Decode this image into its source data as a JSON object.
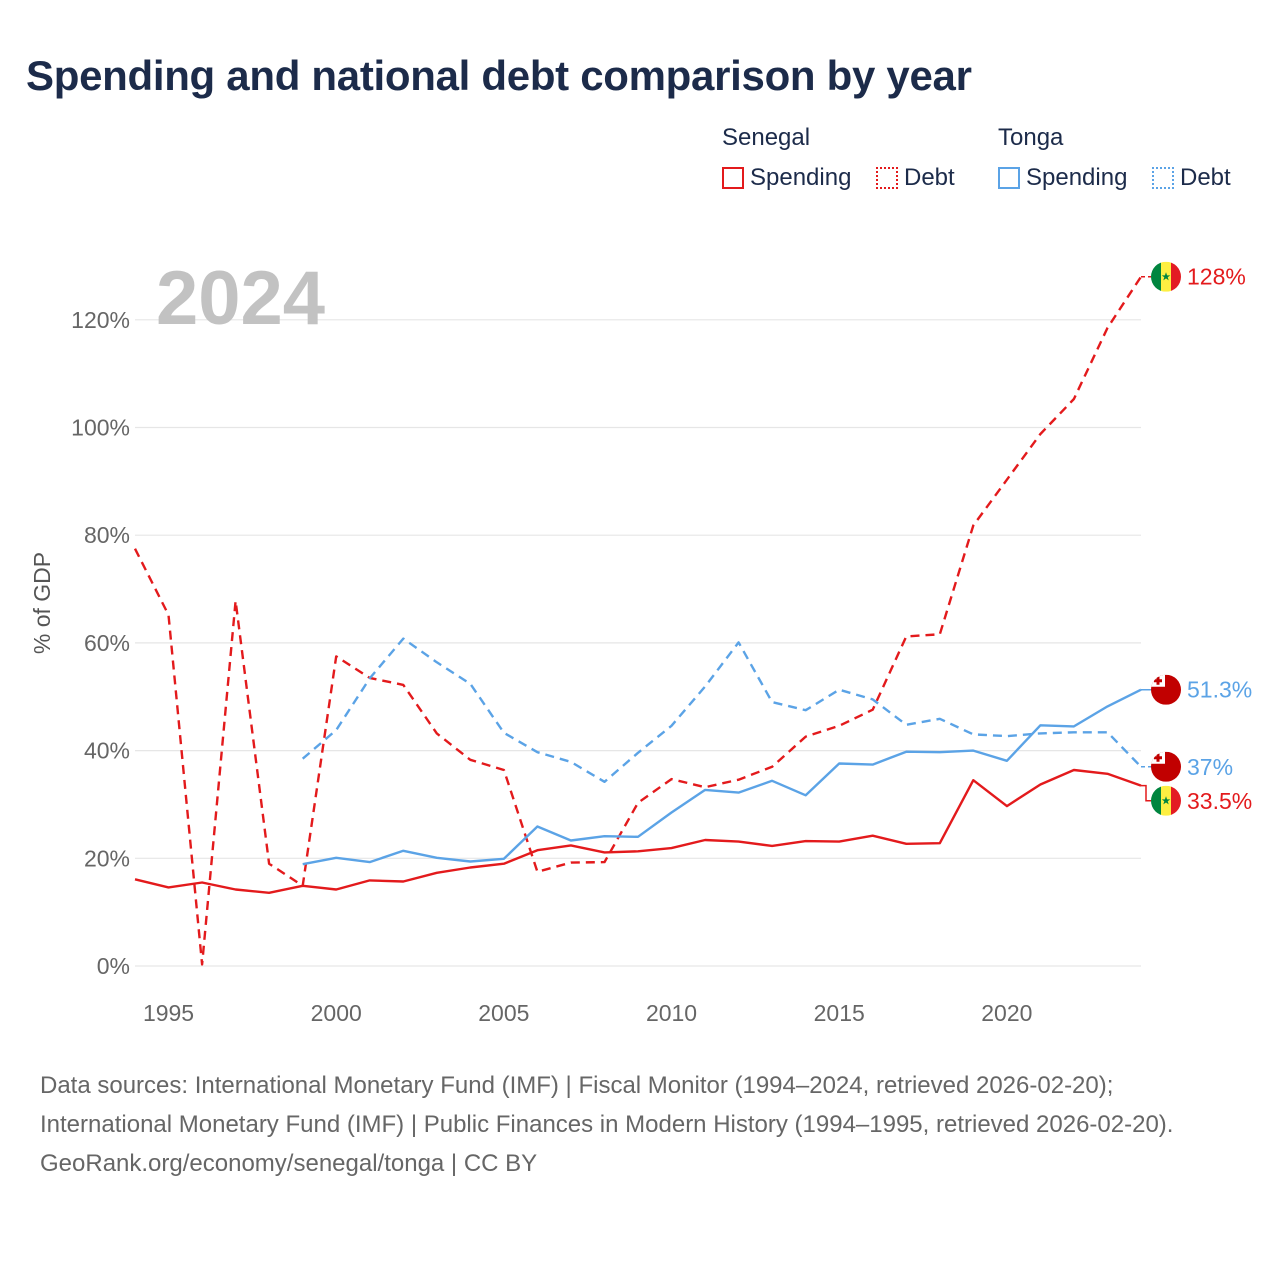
{
  "title": "Spending and national debt comparison by year",
  "legend": {
    "groups": [
      {
        "name": "Senegal",
        "color": "#e31a1c",
        "items": [
          {
            "label": "Spending",
            "style": "solid"
          },
          {
            "label": "Debt",
            "style": "dotted"
          }
        ]
      },
      {
        "name": "Tonga",
        "color": "#5ba3e6",
        "items": [
          {
            "label": "Spending",
            "style": "solid"
          },
          {
            "label": "Debt",
            "style": "dotted"
          }
        ]
      }
    ]
  },
  "chart_data": {
    "type": "line",
    "title": "Spending and national debt comparison by year",
    "year_label": "2024",
    "ylabel": "% of GDP",
    "xlabel": "",
    "xlim": [
      1994,
      2024
    ],
    "ylim": [
      0,
      130
    ],
    "x_ticks": [
      1995,
      2000,
      2005,
      2010,
      2015,
      2020
    ],
    "y_ticks": [
      0,
      20,
      40,
      60,
      80,
      100,
      120
    ],
    "y_tick_labels": [
      "0%",
      "20%",
      "40%",
      "60%",
      "80%",
      "100%",
      "120%"
    ],
    "grid": true,
    "series": [
      {
        "name": "Senegal Spending",
        "country": "Senegal",
        "metric": "Spending",
        "color": "#e31a1c",
        "dash": "solid",
        "x": [
          1994,
          1995,
          1996,
          1997,
          1998,
          1999,
          2000,
          2001,
          2002,
          2003,
          2004,
          2005,
          2006,
          2007,
          2008,
          2009,
          2010,
          2011,
          2012,
          2013,
          2014,
          2015,
          2016,
          2017,
          2018,
          2019,
          2020,
          2021,
          2022,
          2023,
          2024
        ],
        "values": [
          16.1,
          14.6,
          15.5,
          14.2,
          13.6,
          14.9,
          14.2,
          15.9,
          15.7,
          17.3,
          18.3,
          19.0,
          21.5,
          22.4,
          21.1,
          21.3,
          21.9,
          23.4,
          23.1,
          22.3,
          23.2,
          23.1,
          24.2,
          22.7,
          22.8,
          34.5,
          29.7,
          33.7,
          36.4,
          35.7,
          33.5
        ],
        "end_label": "33.5%",
        "flag": "senegal"
      },
      {
        "name": "Senegal Debt",
        "country": "Senegal",
        "metric": "Debt",
        "color": "#e31a1c",
        "dash": "dashed",
        "x": [
          1994,
          1995,
          1996,
          1997,
          1998,
          1999,
          2000,
          2001,
          2002,
          2003,
          2004,
          2005,
          2006,
          2007,
          2008,
          2009,
          2010,
          2011,
          2012,
          2013,
          2014,
          2015,
          2016,
          2017,
          2018,
          2019,
          2020,
          2021,
          2022,
          2023,
          2024
        ],
        "values": [
          77.5,
          65.2,
          0.3,
          67.8,
          19.0,
          14.9,
          57.5,
          53.5,
          52.2,
          43.2,
          38.3,
          36.4,
          17.5,
          19.2,
          19.3,
          30.3,
          34.7,
          33.2,
          34.6,
          37.0,
          42.6,
          44.6,
          47.6,
          61.2,
          61.6,
          81.8,
          90.3,
          98.8,
          105.3,
          118.5,
          128.0
        ],
        "end_label": "128%",
        "flag": "senegal"
      },
      {
        "name": "Tonga Spending",
        "country": "Tonga",
        "metric": "Spending",
        "color": "#5ba3e6",
        "dash": "solid",
        "x": [
          1999,
          2000,
          2001,
          2002,
          2003,
          2004,
          2005,
          2006,
          2007,
          2008,
          2009,
          2010,
          2011,
          2012,
          2013,
          2014,
          2015,
          2016,
          2017,
          2018,
          2019,
          2020,
          2021,
          2022,
          2023,
          2024
        ],
        "values": [
          18.9,
          20.1,
          19.3,
          21.4,
          20.1,
          19.4,
          19.9,
          25.9,
          23.3,
          24.1,
          24.0,
          28.5,
          32.7,
          32.2,
          34.4,
          31.7,
          37.6,
          37.4,
          39.8,
          39.7,
          40.0,
          38.1,
          44.7,
          44.5,
          48.2,
          51.3
        ],
        "end_label": "51.3%",
        "flag": "tonga"
      },
      {
        "name": "Tonga Debt",
        "country": "Tonga",
        "metric": "Debt",
        "color": "#5ba3e6",
        "dash": "dashed",
        "x": [
          1999,
          2000,
          2001,
          2002,
          2003,
          2004,
          2005,
          2006,
          2007,
          2008,
          2009,
          2010,
          2011,
          2012,
          2013,
          2014,
          2015,
          2016,
          2017,
          2018,
          2019,
          2020,
          2021,
          2022,
          2023,
          2024
        ],
        "values": [
          38.5,
          43.8,
          53.4,
          60.8,
          56.4,
          52.4,
          43.3,
          39.7,
          37.9,
          34.2,
          39.6,
          44.6,
          51.9,
          60.1,
          49.0,
          47.5,
          51.3,
          49.5,
          44.8,
          45.9,
          43.0,
          42.7,
          43.2,
          43.4,
          43.4,
          37.0
        ],
        "end_label": "37%",
        "flag": "tonga"
      }
    ]
  },
  "footer": {
    "sources": "Data sources: International Monetary Fund (IMF) | Fiscal Monitor (1994–2024, retrieved 2026-02-20); International Monetary Fund (IMF) | Public Finances in Modern History (1994–1995, retrieved 2026-02-20).",
    "credit": "GeoRank.org/economy/senegal/tonga | CC BY"
  }
}
